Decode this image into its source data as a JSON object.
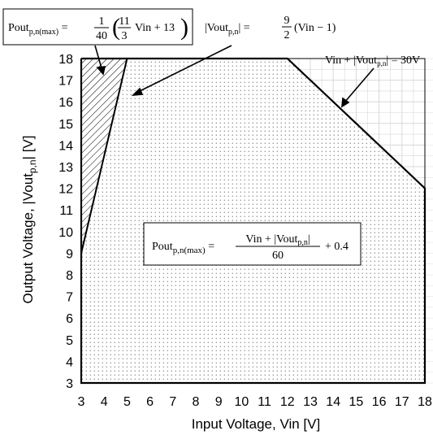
{
  "chart_data": {
    "type": "area",
    "xlabel": "Input Voltage, Vin [V]",
    "ylabel_main": "Output Voltage, |Vout",
    "ylabel_sub": "p,n",
    "ylabel_end": "| [V]",
    "xlim": [
      3,
      18
    ],
    "ylim": [
      3,
      18
    ],
    "x_ticks": [
      "3",
      "4",
      "5",
      "6",
      "7",
      "8",
      "9",
      "10",
      "11",
      "12",
      "13",
      "14",
      "15",
      "16",
      "17",
      "18"
    ],
    "y_ticks": [
      "3",
      "4",
      "5",
      "6",
      "7",
      "8",
      "9",
      "10",
      "11",
      "12",
      "13",
      "14",
      "15",
      "16",
      "17",
      "18"
    ],
    "grid": true,
    "series": [
      {
        "region": "dotted operating area",
        "x": [
          3,
          12,
          18,
          18,
          3
        ],
        "y": [
          18,
          18,
          12,
          3,
          3
        ]
      },
      {
        "region": "hatched excluded area",
        "x": [
          3,
          5,
          3
        ],
        "y": [
          18,
          18,
          9
        ]
      }
    ],
    "boundary_line": {
      "x": [
        3,
        5
      ],
      "y": [
        9,
        18
      ]
    },
    "annotations": {
      "eq1": {
        "lhs": "Pout",
        "lhs_sub": "p,n(max)",
        "frac_num": "1",
        "frac_den": "40",
        "inner_num": "11",
        "inner_den": "3",
        "inner_tail": "Vin + 13"
      },
      "eq2": {
        "lhs": "|Vout",
        "lhs_sub": "p,n",
        "lhs_end": "| =",
        "frac_num": "9",
        "frac_den": "2",
        "tail": "(Vin − 1)"
      },
      "eq3": {
        "text": "Vin + |Vout",
        "sub": "p,n",
        "end": "| = 30V"
      },
      "eq4": {
        "lhs": "Pout",
        "lhs_sub": "p,n(max)",
        "num_a": "Vin + |Vout",
        "num_sub": "p,n",
        "num_end": "|",
        "den": "60",
        "tail": "+ 0.4"
      }
    }
  }
}
